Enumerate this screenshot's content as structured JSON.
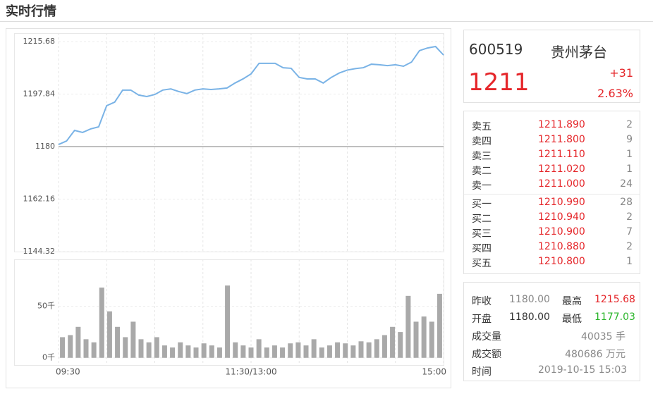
{
  "header": {
    "title": "实时行情"
  },
  "chart_data": [
    {
      "type": "line",
      "color": "#7ab3e6",
      "grid": true,
      "reference_line": 1180,
      "ylim": [
        1144.32,
        1215.68
      ],
      "yticks": [
        1144.32,
        1162.16,
        1180,
        1197.84,
        1215.68
      ],
      "values": [
        1180.7,
        1181.9,
        1185.5,
        1184.8,
        1186,
        1186.7,
        1193.9,
        1195.1,
        1199.2,
        1199.2,
        1197.5,
        1197,
        1197.7,
        1199.2,
        1199.6,
        1198.7,
        1198,
        1199.2,
        1199.6,
        1199.4,
        1199.6,
        1199.9,
        1201.6,
        1203,
        1204.7,
        1208.3,
        1208.3,
        1208.3,
        1206.8,
        1206.6,
        1203.5,
        1203,
        1203,
        1201.6,
        1203.5,
        1205,
        1206,
        1206.5,
        1206.8,
        1208,
        1207.8,
        1207.5,
        1207.8,
        1207.3,
        1208.7,
        1212.6,
        1213.5,
        1214,
        1211.1
      ]
    },
    {
      "type": "bar",
      "color": "#a9a9a9",
      "grid": true,
      "ylim": [
        -7,
        94
      ],
      "yticks": [
        {
          "value": 0,
          "label": "0千"
        },
        {
          "value": 50,
          "label": "50千"
        }
      ],
      "categories": [
        "09:30",
        null,
        null,
        null,
        null,
        null,
        null,
        null,
        null,
        null,
        null,
        null,
        null,
        null,
        null,
        null,
        null,
        null,
        null,
        null,
        null,
        null,
        null,
        null,
        "11:30/13:00",
        null,
        null,
        null,
        null,
        null,
        null,
        null,
        null,
        null,
        null,
        null,
        null,
        null,
        null,
        null,
        null,
        null,
        null,
        null,
        null,
        null,
        null,
        null,
        "15:00"
      ],
      "values": [
        20,
        22,
        30,
        18,
        15,
        68,
        45,
        30,
        20,
        35,
        18,
        15,
        20,
        12,
        10,
        15,
        12,
        10,
        14,
        12,
        10,
        70,
        15,
        12,
        10,
        18,
        10,
        12,
        10,
        14,
        15,
        12,
        18,
        10,
        12,
        15,
        14,
        12,
        16,
        15,
        18,
        22,
        30,
        25,
        60,
        35,
        40,
        35,
        62
      ]
    }
  ],
  "quote": {
    "code": "600519",
    "name": "贵州茅台",
    "price": "1211",
    "change": "+31",
    "change_pct": "2.63%"
  },
  "order_book": {
    "asks": [
      {
        "label": "卖五",
        "price": "1211.890",
        "volume": "2"
      },
      {
        "label": "卖四",
        "price": "1211.800",
        "volume": "9"
      },
      {
        "label": "卖三",
        "price": "1211.110",
        "volume": "1"
      },
      {
        "label": "卖二",
        "price": "1211.020",
        "volume": "1"
      },
      {
        "label": "卖一",
        "price": "1211.000",
        "volume": "24"
      }
    ],
    "bids": [
      {
        "label": "买一",
        "price": "1210.990",
        "volume": "28"
      },
      {
        "label": "买二",
        "price": "1210.940",
        "volume": "2"
      },
      {
        "label": "买三",
        "price": "1210.900",
        "volume": "7"
      },
      {
        "label": "买四",
        "price": "1210.880",
        "volume": "2"
      },
      {
        "label": "买五",
        "price": "1210.800",
        "volume": "1"
      }
    ]
  },
  "stats": {
    "prev_close": {
      "label": "昨收",
      "value": "1180.00"
    },
    "high": {
      "label": "最高",
      "value": "1215.68"
    },
    "open": {
      "label": "开盘",
      "value": "1180.00"
    },
    "low": {
      "label": "最低",
      "value": "1177.03"
    },
    "volume": {
      "label": "成交量",
      "value": "40035 手"
    },
    "turnover": {
      "label": "成交额",
      "value": "480686 万元"
    },
    "time": {
      "label": "时间",
      "value": "2019-10-15 15:03"
    }
  }
}
